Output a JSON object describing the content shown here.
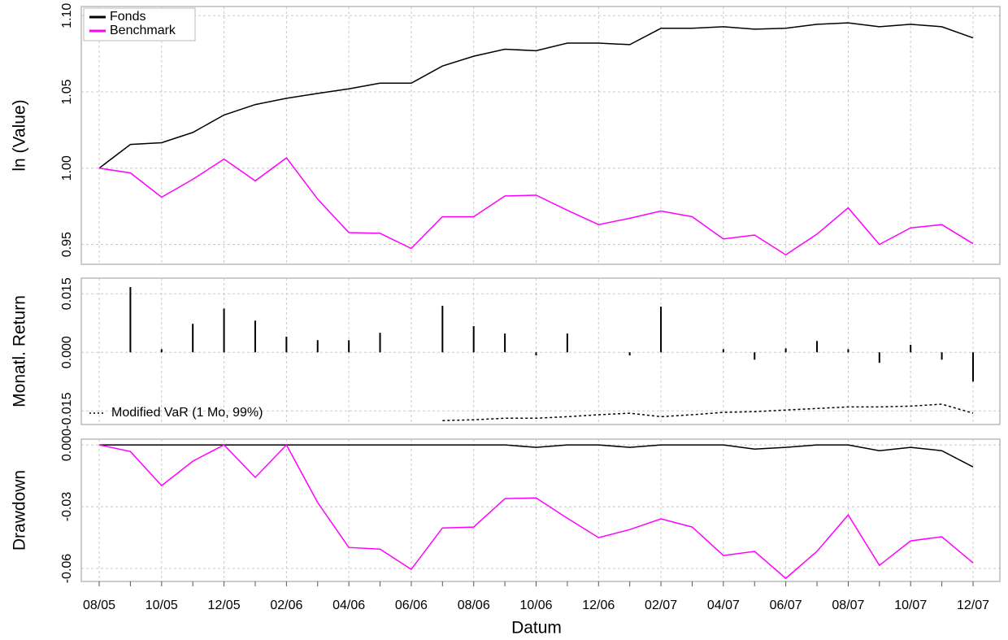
{
  "chart_data": [
    {
      "type": "line",
      "ylabel": "ln (Value)",
      "ylim": [
        0.937,
        1.106
      ],
      "yticks": [
        {
          "value": 0.95,
          "label": "0.95"
        },
        {
          "value": 1.0,
          "label": "1.00"
        },
        1.05,
        {
          "value": 1.1,
          "label": "1.10"
        }
      ],
      "grid": true,
      "legend": "top-left",
      "series": [
        {
          "name": "Fonds",
          "color": "#000000",
          "values": [
            1.0,
            1.0156,
            1.0167,
            1.0234,
            1.0349,
            1.0417,
            1.0458,
            1.049,
            1.052,
            1.0557,
            1.0557,
            1.067,
            1.0734,
            1.078,
            1.077,
            1.082,
            1.082,
            1.081,
            1.0917,
            1.0917,
            1.0927,
            1.0911,
            1.0917,
            1.0943,
            1.0953,
            1.0927,
            1.0943,
            1.0927,
            1.0854
          ]
        },
        {
          "name": "Benchmark",
          "color": "#ff00ff",
          "values": [
            1.0,
            0.9969,
            0.981,
            0.9927,
            1.006,
            0.9917,
            1.0068,
            0.9797,
            0.9578,
            0.9573,
            0.9474,
            0.9682,
            0.9682,
            0.9818,
            0.9823,
            0.9724,
            0.963,
            0.9672,
            0.9719,
            0.9682,
            0.9536,
            0.9562,
            0.9432,
            0.9568,
            0.974,
            0.95,
            0.9609,
            0.963,
            0.9505
          ]
        }
      ]
    },
    {
      "type": "bar",
      "ylabel": "Monatl. Return",
      "ylim": [
        -0.0185,
        0.019
      ],
      "yticks": [
        {
          "value": -0.015,
          "label": "-0.015"
        },
        {
          "value": 0,
          "label": "0.000"
        },
        0.015
      ],
      "grid": true,
      "color": "#000000",
      "values": [
        null,
        0.0167,
        0.0008,
        0.0073,
        0.0112,
        0.0081,
        0.004,
        0.0031,
        0.0031,
        0.005,
        0,
        0.0119,
        0.0067,
        0.0048,
        -0.0008,
        0.0048,
        0,
        -0.0008,
        0.0117,
        0,
        0.0008,
        -0.0019,
        0.001,
        0.0029,
        0.0008,
        -0.0027,
        0.0019,
        -0.0019,
        -0.0075
      ],
      "lines": [
        {
          "name": "Modified VaR (1 Mo, 99%)",
          "color": "#000000",
          "dashed": true,
          "values": [
            null,
            null,
            null,
            null,
            null,
            null,
            null,
            null,
            null,
            null,
            null,
            -0.0175,
            -0.0173,
            -0.0169,
            -0.0169,
            -0.0165,
            -0.016,
            -0.0156,
            -0.0165,
            -0.016,
            -0.0154,
            -0.0152,
            -0.0148,
            -0.0144,
            -0.014,
            -0.014,
            -0.0138,
            -0.0133,
            -0.0156
          ]
        }
      ]
    },
    {
      "type": "line",
      "ylabel": "Drawdown",
      "xlabel": "Datum",
      "ylim": [
        -0.0663,
        0.0028
      ],
      "yticks": [
        -0.06,
        -0.03,
        {
          "value": 0,
          "label": "0.000"
        }
      ],
      "grid": true,
      "categories": [
        "08/05",
        null,
        "10/05",
        null,
        "12/05",
        null,
        "02/06",
        null,
        "04/06",
        null,
        "06/06",
        null,
        "08/06",
        null,
        "10/06",
        null,
        "12/06",
        null,
        "02/07",
        null,
        "04/07",
        null,
        "06/07",
        null,
        "08/07",
        null,
        "10/07",
        null,
        "12/07"
      ],
      "series": [
        {
          "color": "#000000",
          "values": [
            0,
            0,
            0,
            0,
            0,
            0,
            0,
            0,
            0,
            0,
            0,
            0,
            0,
            0,
            -0.0012,
            0,
            0,
            -0.0012,
            0,
            0,
            0,
            -0.002,
            -0.0012,
            0,
            0,
            -0.0028,
            -0.0012,
            -0.0028,
            -0.0107
          ]
        },
        {
          "color": "#ff00ff",
          "values": [
            0,
            -0.0032,
            -0.0198,
            -0.0079,
            0,
            -0.0158,
            0,
            -0.028,
            -0.0498,
            -0.0506,
            -0.0604,
            -0.0403,
            -0.0399,
            -0.0261,
            -0.0257,
            -0.0356,
            -0.045,
            -0.0411,
            -0.0359,
            -0.0399,
            -0.0537,
            -0.0517,
            -0.0648,
            -0.0517,
            -0.034,
            -0.0585,
            -0.0466,
            -0.0446,
            -0.0573
          ]
        }
      ]
    }
  ]
}
